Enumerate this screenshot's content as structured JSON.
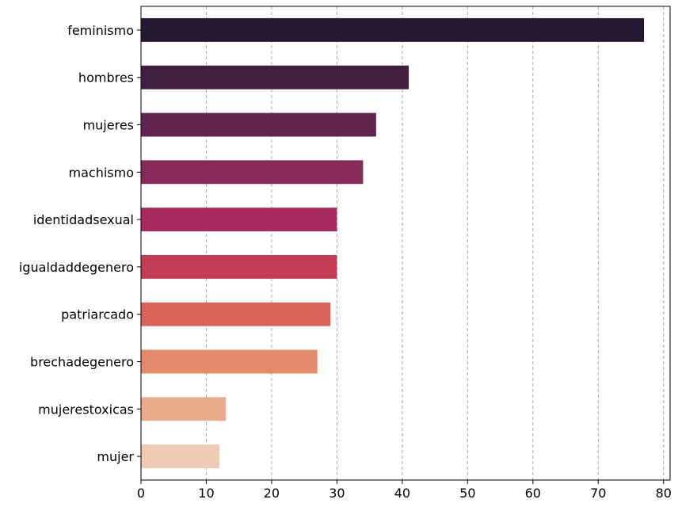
{
  "chart_data": {
    "type": "bar",
    "orientation": "horizontal",
    "categories": [
      "feminismo",
      "hombres",
      "mujeres",
      "machismo",
      "identidadsexual",
      "igualdaddegenero",
      "patriarcado",
      "brechadegenero",
      "mujerestoxicas",
      "mujer"
    ],
    "values": [
      77,
      41,
      36,
      34,
      30,
      30,
      29,
      27,
      13,
      12
    ],
    "colors": [
      "#231930",
      "#421f40",
      "#61244e",
      "#852a59",
      "#a62a5c",
      "#c43d55",
      "#d96356",
      "#e28a6a",
      "#e9ad8c",
      "#efcbb6"
    ],
    "xticks": [
      "0",
      "10",
      "20",
      "30",
      "40",
      "50",
      "60",
      "70",
      "80"
    ],
    "xlim": [
      0,
      81
    ],
    "grid": "x-dashed",
    "title": "",
    "xlabel": "",
    "ylabel": ""
  }
}
